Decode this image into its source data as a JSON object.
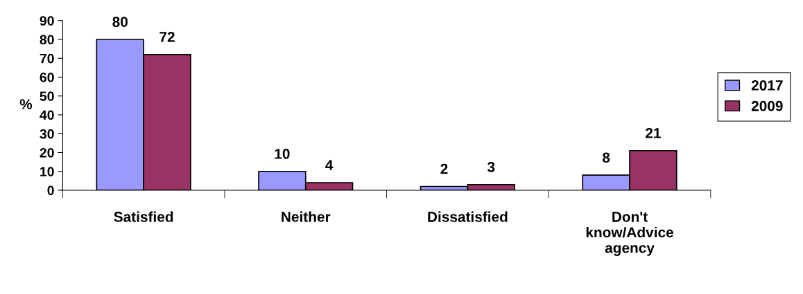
{
  "chart_data": {
    "type": "bar",
    "categories": [
      "Satisfied",
      "Neither",
      "Dissatisfied",
      "Don't\nknow/Advice\nagency"
    ],
    "series": [
      {
        "name": "2017",
        "color": "#9999ff",
        "values": [
          80,
          10,
          2,
          8
        ]
      },
      {
        "name": "2009",
        "color": "#993366",
        "values": [
          72,
          4,
          3,
          21
        ]
      }
    ],
    "ylabel": "%",
    "ylim": [
      0,
      90
    ],
    "yticks": [
      0,
      10,
      20,
      30,
      40,
      50,
      60,
      70,
      80,
      90
    ],
    "data_labels": true,
    "legend": "right",
    "grid": false
  }
}
